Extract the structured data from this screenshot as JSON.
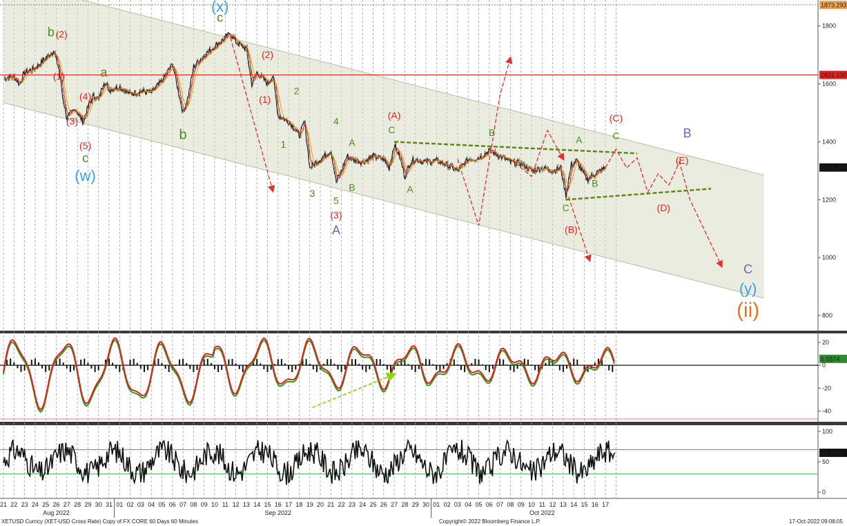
{
  "chart_data": [
    {
      "type": "line",
      "panel": "price",
      "title": "",
      "ylim": [
        750,
        1890
      ],
      "yticks": [
        800,
        1000,
        1200,
        1400,
        1600,
        1800
      ],
      "price_tags": [
        {
          "label": "1873.293",
          "value": 1873.293,
          "color": "#f0a050"
        },
        {
          "label": "1631.130",
          "value": 1631.13,
          "color": "#e02020"
        },
        {
          "label": "1311.300",
          "value": 1311.3,
          "color": "#111111"
        }
      ],
      "horizontal_lines": [
        {
          "value": 1873.293,
          "color": "#e06010",
          "style": "dotted"
        },
        {
          "value": 1631.13,
          "color": "#e02020",
          "style": "solid"
        }
      ],
      "price_path": [
        [
          "08-21 00:00",
          1620
        ],
        [
          "08-22 00:00",
          1625
        ],
        [
          "08-22 12:00",
          1600
        ],
        [
          "08-23 00:00",
          1640
        ],
        [
          "08-24 00:00",
          1655
        ],
        [
          "08-25 00:00",
          1690
        ],
        [
          "08-25 18:00",
          1715
        ],
        [
          "08-26 06:00",
          1650
        ],
        [
          "08-26 14:00",
          1560
        ],
        [
          "08-27 00:00",
          1480
        ],
        [
          "08-27 18:00",
          1515
        ],
        [
          "08-28 12:00",
          1470
        ],
        [
          "08-29 00:00",
          1520
        ],
        [
          "08-29 12:00",
          1560
        ],
        [
          "08-30 00:00",
          1545
        ],
        [
          "08-30 12:00",
          1610
        ],
        [
          "08-31 00:00",
          1580
        ],
        [
          "09-01 00:00",
          1590
        ],
        [
          "09-02 00:00",
          1565
        ],
        [
          "09-03 00:00",
          1575
        ],
        [
          "09-04 00:00",
          1570
        ],
        [
          "09-05 00:00",
          1610
        ],
        [
          "09-06 00:00",
          1670
        ],
        [
          "09-06 18:00",
          1540
        ],
        [
          "09-07 00:00",
          1500
        ],
        [
          "09-07 12:00",
          1560
        ],
        [
          "09-08 00:00",
          1660
        ],
        [
          "09-09 00:00",
          1700
        ],
        [
          "09-10 00:00",
          1730
        ],
        [
          "09-11 00:00",
          1760
        ],
        [
          "09-11 12:00",
          1775
        ],
        [
          "09-12 00:00",
          1745
        ],
        [
          "09-13 00:00",
          1720
        ],
        [
          "09-13 12:00",
          1600
        ],
        [
          "09-14 00:00",
          1640
        ],
        [
          "09-15 00:00",
          1600
        ],
        [
          "09-15 12:00",
          1630
        ],
        [
          "09-16 00:00",
          1490
        ],
        [
          "09-17 00:00",
          1470
        ],
        [
          "09-17 12:00",
          1450
        ],
        [
          "09-18 00:00",
          1420
        ],
        [
          "09-18 12:00",
          1470
        ],
        [
          "09-19 00:00",
          1310
        ],
        [
          "09-20 00:00",
          1340
        ],
        [
          "09-21 00:00",
          1370
        ],
        [
          "09-21 12:00",
          1260
        ],
        [
          "09-22 00:00",
          1300
        ],
        [
          "09-22 12:00",
          1350
        ],
        [
          "09-23 00:00",
          1340
        ],
        [
          "09-24 00:00",
          1330
        ],
        [
          "09-25 00:00",
          1350
        ],
        [
          "09-26 00:00",
          1340
        ],
        [
          "09-26 12:00",
          1310
        ],
        [
          "09-27 00:00",
          1390
        ],
        [
          "09-27 12:00",
          1350
        ],
        [
          "09-28 00:00",
          1280
        ],
        [
          "09-28 12:00",
          1330
        ],
        [
          "09-29 00:00",
          1340
        ],
        [
          "09-30 00:00",
          1330
        ],
        [
          "10-01 00:00",
          1335
        ],
        [
          "10-02 00:00",
          1320
        ],
        [
          "10-03 00:00",
          1300
        ],
        [
          "10-04 00:00",
          1340
        ],
        [
          "10-05 00:00",
          1345
        ],
        [
          "10-06 00:00",
          1370
        ],
        [
          "10-07 00:00",
          1350
        ],
        [
          "10-08 00:00",
          1330
        ],
        [
          "10-09 00:00",
          1325
        ],
        [
          "10-10 00:00",
          1300
        ],
        [
          "10-11 00:00",
          1310
        ],
        [
          "10-12 00:00",
          1300
        ],
        [
          "10-12 18:00",
          1310
        ],
        [
          "10-13 06:00",
          1215
        ],
        [
          "10-13 18:00",
          1320
        ],
        [
          "10-14 06:00",
          1335
        ],
        [
          "10-14 18:00",
          1300
        ],
        [
          "10-15 06:00",
          1270
        ],
        [
          "10-16 00:00",
          1290
        ],
        [
          "10-16 18:00",
          1305
        ],
        [
          "10-17 00:00",
          1311
        ]
      ],
      "channel": [
        {
          "line": "upper",
          "from": [
            "08-21 00:00",
            1960
          ],
          "to": [
            "11-01 00:00",
            1285
          ]
        },
        {
          "line": "lower",
          "from": [
            "08-21 00:00",
            1535
          ],
          "to": [
            "11-01 00:00",
            860
          ]
        }
      ],
      "triangle_lines": [
        {
          "from": [
            "09-27 00:00",
            1400
          ],
          "to": [
            "10-20 00:00",
            1360
          ]
        },
        {
          "from": [
            "10-13 06:00",
            1200
          ],
          "to": [
            "10-27 00:00",
            1238
          ]
        }
      ],
      "projection_arrows": [
        {
          "color": "#e03030",
          "points": [
            [
              "09-11 12:00",
              1760
            ],
            [
              "09-15 12:00",
              1230
            ]
          ]
        },
        {
          "color": "#e03030",
          "points": [
            [
              "10-03 00:00",
              1340
            ],
            [
              "10-05 00:00",
              1110
            ],
            [
              "10-07 00:00",
              1560
            ],
            [
              "10-08 00:00",
              1690
            ]
          ]
        },
        {
          "color": "#e03030",
          "points": [
            [
              "10-08 00:00",
              1340
            ],
            [
              "10-10 00:00",
              1280
            ],
            [
              "10-11 12:00",
              1440
            ],
            [
              "10-13 00:00",
              1340
            ]
          ]
        },
        {
          "color": "#e03030",
          "points": [
            [
              "10-13 12:00",
              1210
            ],
            [
              "10-15 12:00",
              990
            ]
          ]
        },
        {
          "color": "#e03030",
          "points": [
            [
              "10-17 00:00",
              1311
            ],
            [
              "10-18 00:00",
              1375
            ],
            [
              "10-19 00:00",
              1310
            ],
            [
              "10-20 00:00",
              1345
            ],
            [
              "10-21 00:00",
              1225
            ],
            [
              "10-22 00:00",
              1290
            ],
            [
              "10-23 00:00",
              1250
            ],
            [
              "10-24 00:00",
              1330
            ],
            [
              "10-25 00:00",
              1200
            ],
            [
              "10-28 00:00",
              970
            ]
          ]
        }
      ],
      "wave_labels": [
        {
          "text": "(x)",
          "at": [
            "09-10 12:00",
            1850
          ],
          "color": "#3aa0e6",
          "size": 22
        },
        {
          "text": "c",
          "at": [
            "09-10 12:00",
            1815
          ],
          "color": "#4a8c1c",
          "size": 18
        },
        {
          "text": "b",
          "at": [
            "08-25 12:00",
            1765
          ],
          "color": "#4a8c1c",
          "size": 18
        },
        {
          "text": "(2)",
          "at": [
            "08-26 12:00",
            1760
          ],
          "color": "#e02020",
          "size": 14
        },
        {
          "text": "a",
          "at": [
            "08-30 12:00",
            1625
          ],
          "color": "#4a8c1c",
          "size": 18
        },
        {
          "text": "(1)",
          "at": [
            "08-26 06:00",
            1615
          ],
          "color": "#e02020",
          "size": 14
        },
        {
          "text": "(4)",
          "at": [
            "08-28 18:00",
            1545
          ],
          "color": "#e02020",
          "size": 14
        },
        {
          "text": "(3)",
          "at": [
            "08-27 12:00",
            1460
          ],
          "color": "#e02020",
          "size": 14
        },
        {
          "text": "(5)",
          "at": [
            "08-28 18:00",
            1375
          ],
          "color": "#e02020",
          "size": 14
        },
        {
          "text": "c",
          "at": [
            "08-28 18:00",
            1330
          ],
          "color": "#4a8c1c",
          "size": 18
        },
        {
          "text": "(w)",
          "at": [
            "08-28 18:00",
            1265
          ],
          "color": "#3aa0e6",
          "size": 22
        },
        {
          "text": "b",
          "at": [
            "09-07 00:00",
            1410
          ],
          "color": "#4a8c1c",
          "size": 20
        },
        {
          "text": "(2)",
          "at": [
            "09-15 00:00",
            1690
          ],
          "color": "#e02020",
          "size": 14
        },
        {
          "text": "(1)",
          "at": [
            "09-14 18:00",
            1535
          ],
          "color": "#e02020",
          "size": 14
        },
        {
          "text": "2",
          "at": [
            "09-17 18:00",
            1565
          ],
          "color": "#4a8c1c",
          "size": 14
        },
        {
          "text": "1",
          "at": [
            "09-16 12:00",
            1380
          ],
          "color": "#4a8c1c",
          "size": 14
        },
        {
          "text": "3",
          "at": [
            "09-19 06:00",
            1210
          ],
          "color": "#4a8c1c",
          "size": 14
        },
        {
          "text": "4",
          "at": [
            "09-21 12:00",
            1460
          ],
          "color": "#4a8c1c",
          "size": 14
        },
        {
          "text": "5",
          "at": [
            "09-21 12:00",
            1185
          ],
          "color": "#4a8c1c",
          "size": 14
        },
        {
          "text": "(3)",
          "at": [
            "09-21 12:00",
            1135
          ],
          "color": "#e02020",
          "size": 14
        },
        {
          "text": "A",
          "at": [
            "09-21 12:00",
            1080
          ],
          "color": "#7b5cc4",
          "size": 18
        },
        {
          "text": "A",
          "at": [
            "09-23 00:00",
            1385
          ],
          "color": "#4a8c1c",
          "size": 14
        },
        {
          "text": "B",
          "at": [
            "09-23 00:00",
            1230
          ],
          "color": "#4a8c1c",
          "size": 14
        },
        {
          "text": "(A)",
          "at": [
            "09-27 00:00",
            1480
          ],
          "color": "#e02020",
          "size": 14
        },
        {
          "text": "C",
          "at": [
            "09-26 18:00",
            1430
          ],
          "color": "#4a8c1c",
          "size": 14
        },
        {
          "text": "A",
          "at": [
            "09-28 12:00",
            1225
          ],
          "color": "#4a8c1c",
          "size": 14
        },
        {
          "text": "B",
          "at": [
            "10-06 06:00",
            1420
          ],
          "color": "#4a8c1c",
          "size": 14
        },
        {
          "text": "(C)",
          "at": [
            "10-18 00:00",
            1470
          ],
          "color": "#e02020",
          "size": 14
        },
        {
          "text": "C",
          "at": [
            "10-18 00:00",
            1410
          ],
          "color": "#4a8c1c",
          "size": 14
        },
        {
          "text": "B",
          "at": [
            "10-24 18:00",
            1415
          ],
          "color": "#7b5cc4",
          "size": 18
        },
        {
          "text": "A",
          "at": [
            "10-14 12:00",
            1395
          ],
          "color": "#4a8c1c",
          "size": 14
        },
        {
          "text": "(E)",
          "at": [
            "10-24 06:00",
            1325
          ],
          "color": "#e02020",
          "size": 14
        },
        {
          "text": "B",
          "at": [
            "10-16 00:00",
            1245
          ],
          "color": "#4a8c1c",
          "size": 14
        },
        {
          "text": "(D)",
          "at": [
            "10-22 12:00",
            1160
          ],
          "color": "#e02020",
          "size": 14
        },
        {
          "text": "C",
          "at": [
            "10-13 06:00",
            1160
          ],
          "color": "#4a8c1c",
          "size": 14
        },
        {
          "text": "(B)",
          "at": [
            "10-13 18:00",
            1085
          ],
          "color": "#e02020",
          "size": 14
        },
        {
          "text": "C",
          "at": [
            "10-30 12:00",
            945
          ],
          "color": "#7b5cc4",
          "size": 18
        },
        {
          "text": "(y)",
          "at": [
            "10-30 12:00",
            875
          ],
          "color": "#3aa0e6",
          "size": 22
        },
        {
          "text": "(ii)",
          "at": [
            "10-30 12:00",
            795
          ],
          "color": "#f07020",
          "size": 30
        }
      ]
    },
    {
      "type": "line",
      "panel": "oscillator",
      "ylim": [
        -50,
        26
      ],
      "yticks": [
        20,
        0,
        -20,
        -40
      ],
      "price_tags": [
        {
          "label": "5.5574",
          "value": 5.5574,
          "color": "#2e8b2e"
        }
      ],
      "series": [
        {
          "name": "",
          "color": "#e02020"
        },
        {
          "name": "",
          "color": "#2e9b1e"
        },
        {
          "name": "",
          "color": "#111111"
        }
      ],
      "arrow": {
        "from": [
          "09-19 06:00",
          -37
        ],
        "to": [
          "09-27 00:00",
          -8
        ],
        "color": "#8fd21a"
      }
    },
    {
      "type": "line",
      "panel": "rsi",
      "ylim": [
        -10,
        110
      ],
      "yticks": [
        100,
        50,
        0
      ],
      "price_tags": [
        {
          "label": "64.7683",
          "value": 64.7683,
          "color": "#111111"
        }
      ],
      "levels": [
        {
          "value": 70,
          "color": "#e05050"
        },
        {
          "value": 30,
          "color": "#4caf50"
        }
      ],
      "last_value": 64.7683
    }
  ],
  "x_axis": {
    "day_labels": [
      "21",
      "22",
      "23",
      "24",
      "25",
      "26",
      "27",
      "28",
      "29",
      "30",
      "31",
      "01",
      "02",
      "03",
      "04",
      "05",
      "06",
      "07",
      "08",
      "09",
      "10",
      "11",
      "12",
      "13",
      "14",
      "15",
      "16",
      "17",
      "18",
      "19",
      "20",
      "21",
      "22",
      "23",
      "24",
      "25",
      "26",
      "27",
      "28",
      "29",
      "30",
      "01",
      "02",
      "03",
      "04",
      "05",
      "06",
      "07",
      "08",
      "09",
      "10",
      "11",
      "12",
      "13",
      "14",
      "15",
      "16",
      "17"
    ],
    "month_labels": [
      "Aug 2022",
      "Sep 2022",
      "Oct 2022"
    ]
  },
  "footer": {
    "left": "XETUSD Curncy (XET-USD Cross Rate) Copy of FX CORE 60 Days 60 Minutes",
    "center": "Copyright© 2022 Bloomberg Finance L.P.",
    "right": "17-Oct-2022 09:08:05"
  }
}
